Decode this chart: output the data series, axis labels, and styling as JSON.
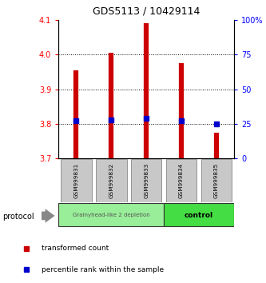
{
  "title": "GDS5113 / 10429114",
  "samples": [
    "GSM999831",
    "GSM999832",
    "GSM999833",
    "GSM999834",
    "GSM999835"
  ],
  "bar_top": [
    3.955,
    4.005,
    4.09,
    3.975,
    3.775
  ],
  "bar_bottom": [
    3.7,
    3.7,
    3.7,
    3.7,
    3.7
  ],
  "percentile_values": [
    3.808,
    3.812,
    3.815,
    3.808,
    3.8
  ],
  "ylim_min": 3.7,
  "ylim_max": 4.1,
  "yticks_left": [
    3.7,
    3.8,
    3.9,
    4.0,
    4.1
  ],
  "yticks_right_vals": [
    0,
    25,
    50,
    75,
    100
  ],
  "yticks_right_pos": [
    3.7,
    3.8,
    3.9,
    4.0,
    4.1
  ],
  "bar_color": "#cc0000",
  "percentile_color": "#0000cc",
  "group1_label": "Grainyhead-like 2 depletion",
  "group2_label": "control",
  "group1_color": "#99ee99",
  "group2_color": "#44dd44",
  "group1_indices": [
    0,
    1,
    2
  ],
  "group2_indices": [
    3,
    4
  ],
  "legend_bar_label": "transformed count",
  "legend_pct_label": "percentile rank within the sample",
  "protocol_label": "protocol",
  "sample_box_color": "#c8c8c8",
  "gridline_color": "#000000",
  "gridline_vals": [
    3.8,
    3.9,
    4.0
  ]
}
